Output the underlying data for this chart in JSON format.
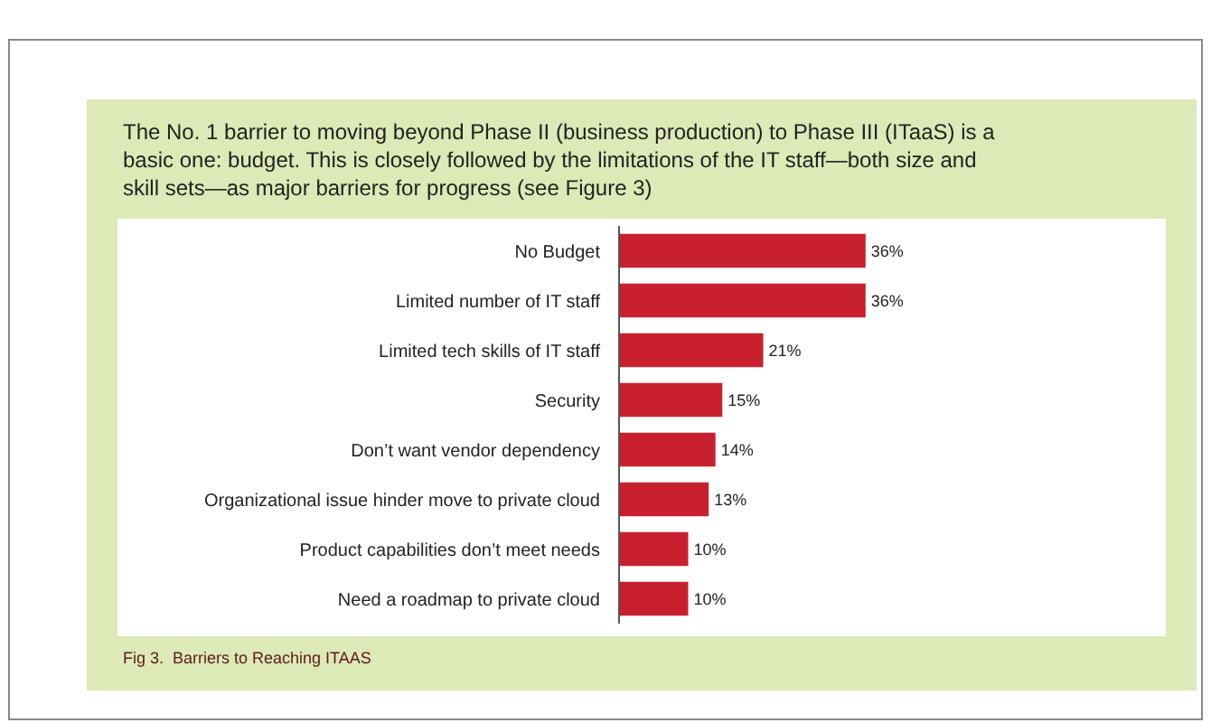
{
  "chart_data": {
    "type": "bar",
    "orientation": "horizontal",
    "title": "The No. 1 barrier to moving beyond Phase II (business production) to Phase III (ITaaS) is a basic one: budget. This is closely followed by the limitations of the IT staff—both size and skill sets—as major barriers for progress (see Figure 3)",
    "categories": [
      "No Budget",
      "Limited number of IT staff",
      "Limited tech skills of IT staff",
      "Security",
      "Don’t want vendor dependency",
      "Organizational issue hinder move to private cloud",
      "Product capabilities don’t meet needs",
      "Need a roadmap to private cloud"
    ],
    "values": [
      36,
      36,
      21,
      15,
      14,
      13,
      10,
      10
    ],
    "value_labels": [
      "36%",
      "36%",
      "21%",
      "15%",
      "14%",
      "13%",
      "10%",
      "10%"
    ],
    "color": "#c8202f",
    "xlim": [
      0,
      80
    ],
    "tick_labels": "y",
    "legend": false,
    "annotations": [
      "Fig 3.  Barriers to Reaching ITAAS"
    ]
  }
}
